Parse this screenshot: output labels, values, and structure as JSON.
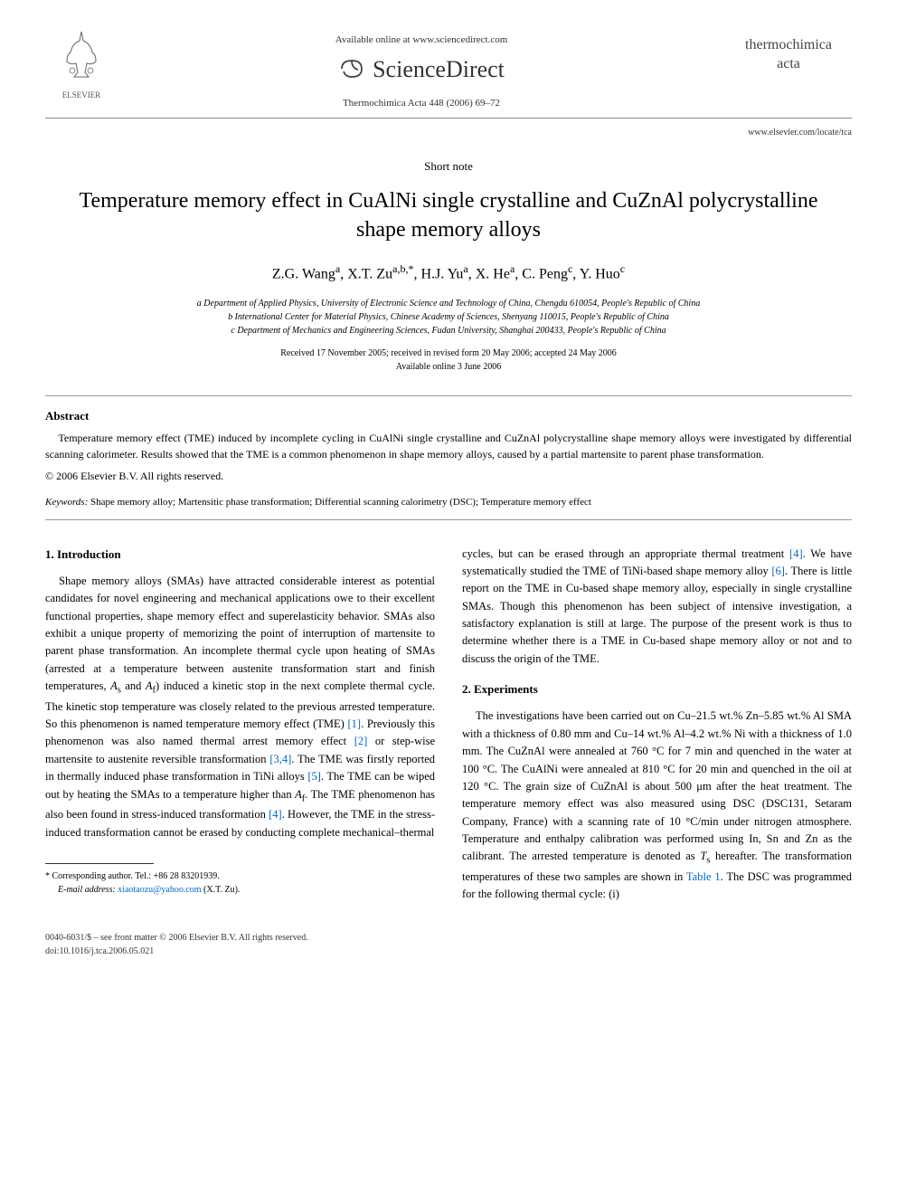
{
  "header": {
    "elsevier_label": "ELSEVIER",
    "available_online": "Available online at www.sciencedirect.com",
    "sciencedirect": "ScienceDirect",
    "journal_ref": "Thermochimica Acta 448 (2006) 69–72",
    "journal_name_line1": "thermochimica",
    "journal_name_line2": "acta",
    "journal_url": "www.elsevier.com/locate/tca"
  },
  "article": {
    "type": "Short note",
    "title": "Temperature memory effect in CuAlNi single crystalline and CuZnAl polycrystalline shape memory alloys",
    "authors_html": "Z.G. Wang<sup>a</sup>, X.T. Zu<sup>a,b,*</sup>, H.J. Yu<sup>a</sup>, X. He<sup>a</sup>, C. Peng<sup>c</sup>, Y. Huo<sup>c</sup>",
    "affiliations": [
      "a Department of Applied Physics, University of Electronic Science and Technology of China, Chengdu 610054, People's Republic of China",
      "b International Center for Material Physics, Chinese Academy of Sciences, Shenyang 110015, People's Republic of China",
      "c Department of Mechanics and Engineering Sciences, Fudan University, Shanghai 200433, People's Republic of China"
    ],
    "dates_line1": "Received 17 November 2005; received in revised form 20 May 2006; accepted 24 May 2006",
    "dates_line2": "Available online 3 June 2006"
  },
  "abstract": {
    "heading": "Abstract",
    "body": "Temperature memory effect (TME) induced by incomplete cycling in CuAlNi single crystalline and CuZnAl polycrystalline shape memory alloys were investigated by differential scanning calorimeter. Results showed that the TME is a common phenomenon in shape memory alloys, caused by a partial martensite to parent phase transformation.",
    "copyright": "© 2006 Elsevier B.V. All rights reserved."
  },
  "keywords": {
    "label": "Keywords:",
    "text": " Shape memory alloy; Martensitic phase transformation; Differential scanning calorimetry (DSC); Temperature memory effect"
  },
  "sections": {
    "intro_head": "1. Introduction",
    "exp_head": "2. Experiments"
  },
  "footnote": {
    "corresponding": "* Corresponding author. Tel.: +86 28 83201939.",
    "email_label": "E-mail address:",
    "email": "xiaotaozu@yahoo.com",
    "email_suffix": " (X.T. Zu)."
  },
  "footer": {
    "left_line1": "0040-6031/$ – see front matter © 2006 Elsevier B.V. All rights reserved.",
    "left_line2": "doi:10.1016/j.tca.2006.05.021"
  },
  "refs": {
    "r1": "[1]",
    "r2": "[2]",
    "r34": "[3,4]",
    "r4": "[4]",
    "r5": "[5]",
    "r6": "[6]",
    "table1": "Table 1"
  }
}
